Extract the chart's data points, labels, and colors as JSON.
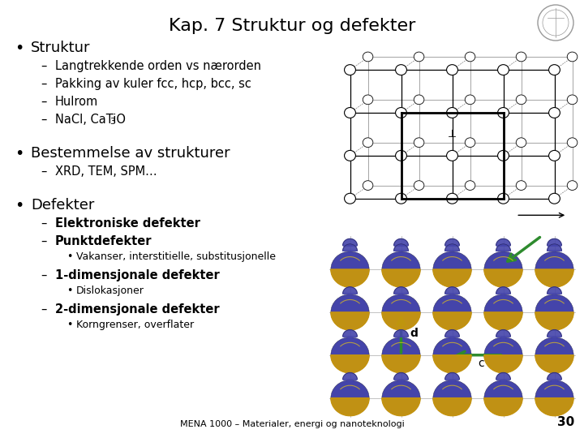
{
  "title": "Kap. 7 Struktur og defekter",
  "title_fontsize": 16,
  "background_color": "#ffffff",
  "text_color": "#000000",
  "footer": "MENA 1000 – Materialer, energi og nanoteknologi",
  "page_number": "30",
  "bullet1_main": "Struktur",
  "bullet1_subs": [
    "Langtrekkende orden vs nærorden",
    "Pakking av kuler fcc, hcp, bcc, sc",
    "Hulrom",
    "NaCl, CaTiO"
  ],
  "bullet2_main": "Bestemmelse av strukturer",
  "bullet2_subs": [
    "XRD, TEM, SPM…"
  ],
  "bullet3_main": "Defekter",
  "bullet3_subs_bold": [
    "Elektroniske defekter",
    "Punktdefekter"
  ],
  "bullet3_sub_bullet": "Vakanser, interstitielle, substitusjonelle",
  "bullet3_bold1": "1-dimensjonale defekter",
  "bullet3_bold1_sub": "Dislokasjoner",
  "bullet3_bold2": "2-dimensjonale defekter",
  "bullet3_bold2_sub": "Korngrenser, overflater",
  "main_font_size": 12,
  "sub_font_size": 10.5,
  "subsub_font_size": 9,
  "gold_color": "#C8960C",
  "purple_color": "#4444AA",
  "green_arrow": "#2E8B2E"
}
